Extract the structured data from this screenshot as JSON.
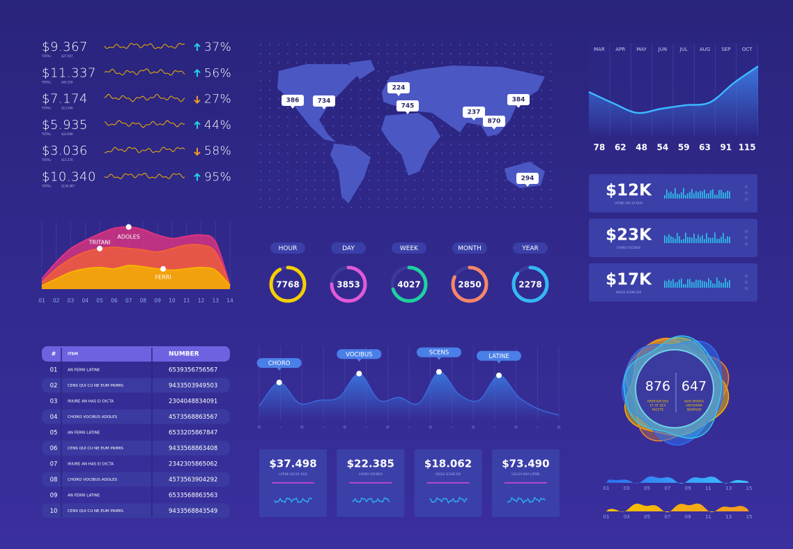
{
  "stats": [
    {
      "value": "$9.367",
      "total_label": "TOTAL:",
      "total": "$27.057",
      "direction": "up",
      "change": "37%"
    },
    {
      "value": "$11.337",
      "total_label": "TOTAL:",
      "total": "$65.350",
      "direction": "up",
      "change": "56%"
    },
    {
      "value": "$7.174",
      "total_label": "TOTAL:",
      "total": "$13.260",
      "direction": "down",
      "change": "27%"
    },
    {
      "value": "$5.935",
      "total_label": "TOTAL:",
      "total": "$22.690",
      "direction": "up",
      "change": "44%"
    },
    {
      "value": "$3.036",
      "total_label": "TOTAL:",
      "total": "$11.270",
      "direction": "down",
      "change": "58%"
    },
    {
      "value": "$10.340",
      "total_label": "TOTAL:",
      "total": "$130.087",
      "direction": "up",
      "change": "95%"
    }
  ],
  "map": {
    "markers": [
      386,
      734,
      224,
      745,
      237,
      870,
      384,
      294
    ]
  },
  "timeline": {
    "type": "area",
    "categories": [
      "MAR",
      "APR",
      "MAY",
      "JUN",
      "JUL",
      "AUG",
      "SEP",
      "OCT"
    ],
    "values": [
      78,
      62,
      48,
      54,
      59,
      63,
      91,
      115
    ],
    "ylim": [
      20,
      130
    ],
    "color": "#3db7ff"
  },
  "kpi_cards": [
    {
      "value": "$12K",
      "caption": "LATINE USU EX DUO"
    },
    {
      "value": "$23K",
      "caption": "CHORO VOCIBUS"
    },
    {
      "value": "$17K",
      "caption": "ADOLE SCENS DIX"
    }
  ],
  "area_chart": {
    "type": "area",
    "categories": [
      "01",
      "02",
      "03",
      "04",
      "05",
      "06",
      "07",
      "08",
      "09",
      "10",
      "11",
      "12",
      "13",
      "14"
    ],
    "ylim": [
      0,
      100
    ],
    "series": [
      {
        "name": "ADOLES",
        "color": "#e0337f",
        "values": [
          15,
          40,
          60,
          72,
          82,
          90,
          92,
          88,
          80,
          75,
          78,
          80,
          70,
          5
        ]
      },
      {
        "name": "TRITANI",
        "color": "#f0603a",
        "values": [
          10,
          30,
          45,
          55,
          60,
          62,
          60,
          58,
          55,
          60,
          65,
          65,
          55,
          5
        ]
      },
      {
        "name": "FERRI",
        "color": "#f5b400",
        "values": [
          5,
          15,
          25,
          30,
          32,
          30,
          35,
          33,
          30,
          28,
          30,
          32,
          28,
          5
        ]
      }
    ]
  },
  "rings": {
    "progress_lim": [
      0,
      100
    ],
    "items": [
      {
        "label": "HOUR",
        "value": 7768,
        "progress": 92,
        "color": "#f5d000"
      },
      {
        "label": "DAY",
        "value": 3853,
        "progress": 75,
        "color": "#e05ad8"
      },
      {
        "label": "WEEK",
        "value": 4027,
        "progress": 70,
        "color": "#1fd1a0"
      },
      {
        "label": "MONTH",
        "value": 2850,
        "progress": 82,
        "color": "#f5866a"
      },
      {
        "label": "YEAR",
        "value": 2278,
        "progress": 86,
        "color": "#35b8f5"
      }
    ]
  },
  "table": {
    "header": [
      "#",
      "ITEM",
      "NUMBER"
    ],
    "rows": [
      [
        "01",
        "AN FERRI LATINE",
        "6539356756567"
      ],
      [
        "02",
        "CENS QUI CU NE EUM PRIMIS",
        "9433503949503"
      ],
      [
        "03",
        "IRIURE AN HAS EI DICTA",
        "2304048834091"
      ],
      [
        "04",
        "CHORO VOCIBUS ADOLES",
        "4573568863567"
      ],
      [
        "05",
        "AN FERRI LATINE",
        "6533205867847"
      ],
      [
        "06",
        "CENS QUI CU NE EUM PRIMIS",
        "9433568863408"
      ],
      [
        "07",
        "IRIURE AN HAS EI DICTA",
        "2342305865062"
      ],
      [
        "08",
        "CHORO VOCIBUS ADOLES",
        "4573563904292"
      ],
      [
        "09",
        "AN FERRI LATINE",
        "6533568863563"
      ],
      [
        "10",
        "CENS QUI CU NE EUM PRIMIS",
        "9433568843549"
      ]
    ]
  },
  "peaks_chart": {
    "type": "area",
    "categories": [
      null,
      "CHORO",
      null,
      null,
      null,
      "VOCIBUS",
      null,
      null,
      null,
      "SCENS",
      null,
      null,
      "LATINE",
      null,
      null,
      null
    ],
    "values": [
      20,
      60,
      25,
      30,
      35,
      75,
      30,
      35,
      25,
      78,
      40,
      30,
      72,
      35,
      15,
      5
    ],
    "ylim": [
      0,
      100
    ],
    "color": "#3a6ad8"
  },
  "value_cards": [
    {
      "value": "$37.498",
      "caption": "LATINE USU EX DUO"
    },
    {
      "value": "$22.385",
      "caption": "CHORO VOCIBUS"
    },
    {
      "value": "$18.062",
      "caption": "ADOLE SCENS DIX"
    },
    {
      "value": "$73.490",
      "caption": "USU EX DUO LATINE"
    }
  ],
  "blob": {
    "stats": [
      {
        "value": 876,
        "caption": [
          "APERIAM DES",
          "ET AT SEA",
          "FACETE"
        ]
      },
      {
        "value": 647,
        "caption": [
          "DUO MOVEA",
          "ANTIOPAM",
          "SEMPSER"
        ]
      }
    ]
  },
  "waves": {
    "axis": [
      "01",
      "03",
      "05",
      "07",
      "09",
      "11",
      "13",
      "15"
    ]
  }
}
